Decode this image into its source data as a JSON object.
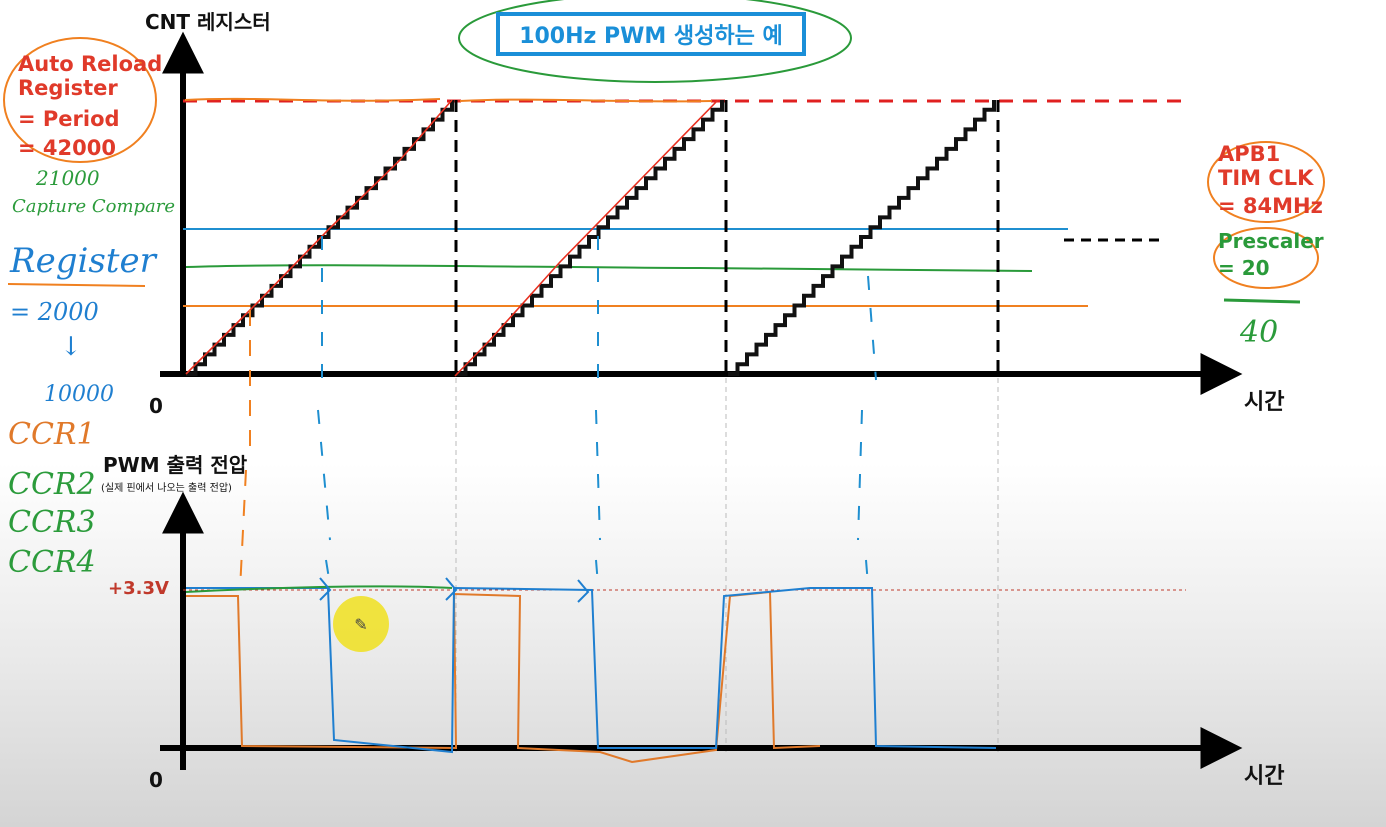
{
  "title": "100Hz PWM 생성하는 예",
  "top_graph": {
    "y_label": "CNT 레지스터",
    "x_label": "시간",
    "origin": "0"
  },
  "bottom_graph": {
    "y_label": "PWM 출력 전압",
    "y_sublabel": "(실제 핀에서 나오는 출력 전압)",
    "x_label": "시간",
    "origin": "0",
    "voltage_label": "+3.3V"
  },
  "left_notes": {
    "arr_line1": "Auto Reload",
    "arr_line2": "Register",
    "arr_line3": "= Period",
    "arr_line4": "= 42000",
    "hand_21000": "21000",
    "hand_capture": "Capture Compare",
    "hand_register": "Register",
    "hand_eq2000": "= 2000",
    "hand_arrow": "↓",
    "hand_10000": "10000",
    "hand_ccr1": "CCR1",
    "hand_ccr2": "CCR2",
    "hand_ccr3": "CCR3",
    "hand_ccr4": "CCR4"
  },
  "right_notes": {
    "apb1": "APB1",
    "tim_clk": "TIM CLK",
    "clk_value": "= 84MHz",
    "prescaler": "Prescaler",
    "prescaler_value": "=  20",
    "hand_40": "40"
  },
  "colors": {
    "title_border": "#1a8fd8",
    "red_text": "#e03a2a",
    "green_text": "#2a9a3a",
    "ramp": "#111111",
    "arr_dashed": "#e02020",
    "ccr_blue": "#1f8fd0",
    "ccr_green": "#2a9a3a",
    "ccr_orange": "#f08020",
    "pwm_orange": "#e0792a",
    "pwm_blue": "#1f7fd0"
  },
  "icons": {
    "cursor": "pencil-icon"
  }
}
